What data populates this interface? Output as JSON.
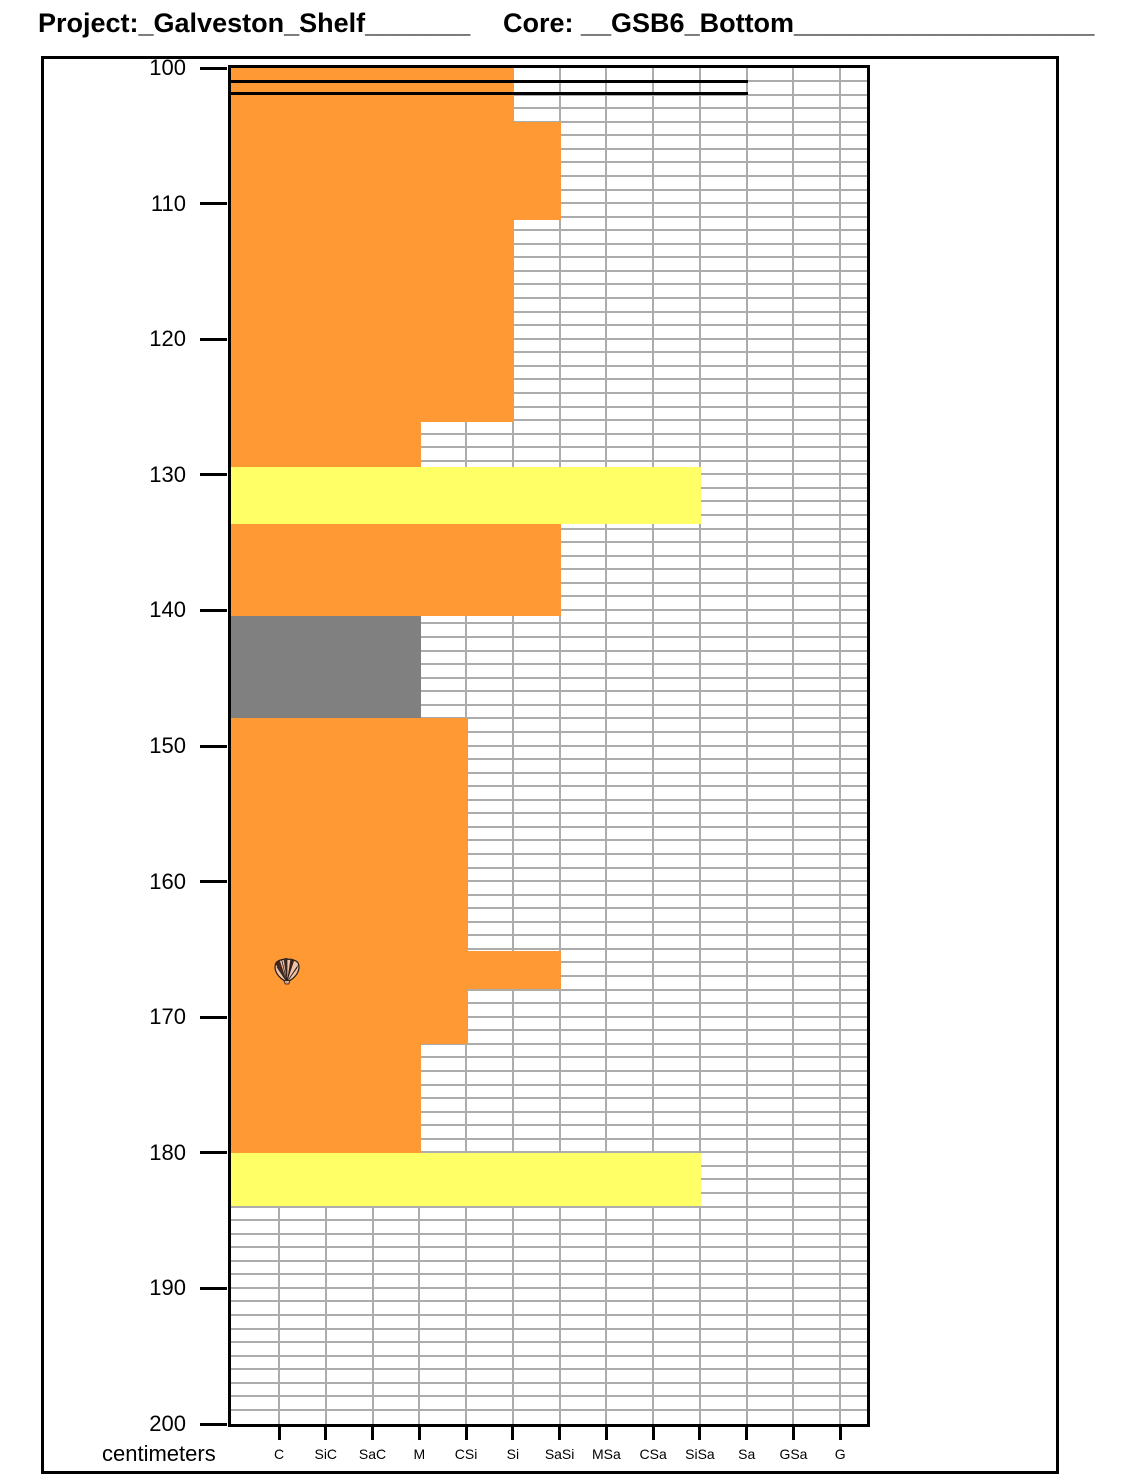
{
  "header": {
    "project_field": "Project:_Galveston_Shelf_______",
    "core_field": "Core: __GSB6_Bottom____________________"
  },
  "chart_data": {
    "type": "bar",
    "subtype": "sediment-core-grain-size-log",
    "title": "",
    "y_axis_label": "centimeters",
    "y_ticks": [
      "100",
      "110",
      "120",
      "130",
      "140",
      "150",
      "160",
      "170",
      "180",
      "190",
      "200"
    ],
    "ylim": [
      100,
      200
    ],
    "grid": true,
    "x_categories": [
      "C",
      "SiC",
      "SaC",
      "M",
      "CSi",
      "Si",
      "SaSi",
      "MSa",
      "CSa",
      "SiSa",
      "Sa",
      "GSa",
      "G"
    ],
    "segments": [
      {
        "depth_from": 100.0,
        "depth_to": 104.0,
        "grain_size": "Si",
        "lithology": "orange"
      },
      {
        "depth_from": 104.0,
        "depth_to": 111.2,
        "grain_size": "SaSi",
        "lithology": "orange"
      },
      {
        "depth_from": 111.2,
        "depth_to": 126.1,
        "grain_size": "Si",
        "lithology": "orange"
      },
      {
        "depth_from": 126.1,
        "depth_to": 129.4,
        "grain_size": "M",
        "lithology": "orange"
      },
      {
        "depth_from": 129.4,
        "depth_to": 133.6,
        "grain_size": "SiSa",
        "lithology": "yellow"
      },
      {
        "depth_from": 133.6,
        "depth_to": 140.4,
        "grain_size": "SaSi",
        "lithology": "orange"
      },
      {
        "depth_from": 140.4,
        "depth_to": 147.9,
        "grain_size": "M",
        "lithology": "gray"
      },
      {
        "depth_from": 147.9,
        "depth_to": 165.1,
        "grain_size": "CSi",
        "lithology": "orange"
      },
      {
        "depth_from": 165.1,
        "depth_to": 167.9,
        "grain_size": "SaSi",
        "lithology": "orange"
      },
      {
        "depth_from": 167.9,
        "depth_to": 172.0,
        "grain_size": "CSi",
        "lithology": "orange"
      },
      {
        "depth_from": 172.0,
        "depth_to": 180.0,
        "grain_size": "M",
        "lithology": "orange"
      },
      {
        "depth_from": 180.0,
        "depth_to": 183.9,
        "grain_size": "SiSa",
        "lithology": "yellow"
      }
    ],
    "contact_lines": [
      {
        "depth": 101.0,
        "extends_to": "Sa"
      },
      {
        "depth": 101.9,
        "extends_to": "Sa"
      }
    ],
    "symbols": [
      {
        "icon": "shell",
        "depth": 166.5,
        "column": "C"
      }
    ]
  },
  "colors": {
    "orange": "#FF9933",
    "yellow": "#FFFF66",
    "gray": "#808080",
    "grid_line": "#ACACAC",
    "frame": "#000000",
    "background": "#FFFFFF"
  }
}
